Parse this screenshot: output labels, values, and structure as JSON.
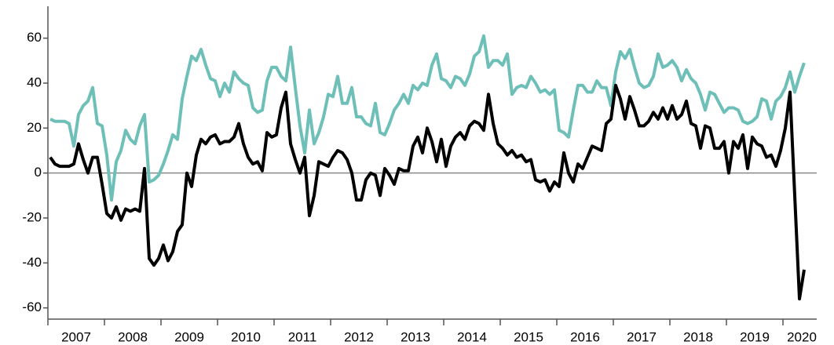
{
  "chart_data": {
    "type": "line",
    "categories": [
      null,
      null,
      null,
      null,
      null,
      null,
      "2007",
      null,
      null,
      null,
      null,
      null,
      null,
      null,
      null,
      null,
      null,
      null,
      "2008",
      null,
      null,
      null,
      null,
      null,
      null,
      null,
      null,
      null,
      null,
      null,
      "2009",
      null,
      null,
      null,
      null,
      null,
      null,
      null,
      null,
      null,
      null,
      null,
      "2010",
      null,
      null,
      null,
      null,
      null,
      null,
      null,
      null,
      null,
      null,
      null,
      "2011",
      null,
      null,
      null,
      null,
      null,
      null,
      null,
      null,
      null,
      null,
      null,
      "2012",
      null,
      null,
      null,
      null,
      null,
      null,
      null,
      null,
      null,
      null,
      null,
      "2013",
      null,
      null,
      null,
      null,
      null,
      null,
      null,
      null,
      null,
      null,
      null,
      "2014",
      null,
      null,
      null,
      null,
      null,
      null,
      null,
      null,
      null,
      null,
      null,
      "2015",
      null,
      null,
      null,
      null,
      null,
      null,
      null,
      null,
      null,
      null,
      null,
      "2016",
      null,
      null,
      null,
      null,
      null,
      null,
      null,
      null,
      null,
      null,
      null,
      "2017",
      null,
      null,
      null,
      null,
      null,
      null,
      null,
      null,
      null,
      null,
      null,
      "2018",
      null,
      null,
      null,
      null,
      null,
      null,
      null,
      null,
      null,
      null,
      null,
      "2019",
      null,
      null,
      null,
      null,
      null,
      null,
      null,
      null,
      null,
      "2020"
    ],
    "series": [
      {
        "color": "#6dbfb8",
        "values": [
          24,
          23,
          23,
          23,
          22,
          12,
          26,
          30,
          32,
          38,
          22,
          21,
          8,
          -12,
          5,
          10,
          19,
          15,
          13,
          21,
          26,
          -4,
          -3,
          -1,
          4,
          10,
          17,
          15,
          33,
          43,
          52,
          50,
          55,
          48,
          42,
          41,
          34,
          40,
          36,
          45,
          42,
          40,
          39,
          29,
          27,
          28,
          41,
          47,
          47,
          43,
          41,
          56,
          38,
          21,
          9,
          28,
          13,
          18,
          25,
          35,
          34,
          43,
          31,
          31,
          38,
          25,
          25,
          22,
          21,
          31,
          18,
          17,
          22,
          28,
          31,
          35,
          31,
          39,
          37,
          40,
          39,
          48,
          53,
          42,
          41,
          38,
          43,
          42,
          39,
          44,
          52,
          54,
          61,
          47,
          50,
          50,
          48,
          53,
          35,
          38,
          39,
          38,
          43,
          40,
          36,
          37,
          35,
          37,
          19,
          18,
          16,
          28,
          39,
          39,
          36,
          36,
          41,
          38,
          38,
          30,
          45,
          54,
          51,
          55,
          47,
          40,
          38,
          39,
          43,
          53,
          47,
          48,
          50,
          47,
          41,
          46,
          42,
          40,
          35,
          28,
          36,
          35,
          31,
          27,
          29,
          29,
          28,
          23,
          22,
          23,
          25,
          33,
          32,
          24,
          32,
          34,
          38,
          45,
          36,
          43,
          49
        ]
      },
      {
        "color": "#000000",
        "values": [
          7,
          4,
          3,
          3,
          3,
          4,
          13,
          6,
          0,
          7,
          7,
          -5,
          -18,
          -20,
          -15,
          -21,
          -16,
          -17,
          -16,
          -17,
          2,
          -38,
          -41,
          -38,
          -32,
          -39,
          -35,
          -26,
          -23,
          0,
          -6,
          8,
          15,
          13,
          16,
          17,
          13,
          14,
          14,
          16,
          22,
          13,
          7,
          4,
          5,
          1,
          18,
          16,
          17,
          29,
          36,
          13,
          6,
          0,
          7,
          -19,
          -10,
          5,
          4,
          3,
          7,
          10,
          9,
          6,
          0,
          -12,
          -12,
          -3,
          0,
          -1,
          -10,
          2,
          -1,
          -5,
          2,
          1,
          1,
          12,
          16,
          9,
          20,
          14,
          5,
          15,
          3,
          12,
          16,
          18,
          15,
          21,
          23,
          22,
          19,
          35,
          22,
          13,
          11,
          8,
          10,
          7,
          8,
          5,
          6,
          -3,
          -4,
          -3,
          -8,
          -4,
          -6,
          9,
          0,
          -4,
          4,
          2,
          7,
          12,
          11,
          10,
          22,
          24,
          39,
          33,
          24,
          34,
          28,
          21,
          21,
          23,
          27,
          24,
          29,
          24,
          30,
          24,
          26,
          32,
          22,
          21,
          11,
          21,
          20,
          11,
          11,
          14,
          0,
          14,
          11,
          17,
          2,
          16,
          13,
          12,
          7,
          8,
          3,
          10,
          20,
          36,
          -10,
          -56,
          -43
        ]
      }
    ],
    "ylim": [
      -65,
      70
    ],
    "yticks": [
      -60,
      -40,
      -20,
      0,
      20,
      40,
      60
    ],
    "zero_line": true
  }
}
